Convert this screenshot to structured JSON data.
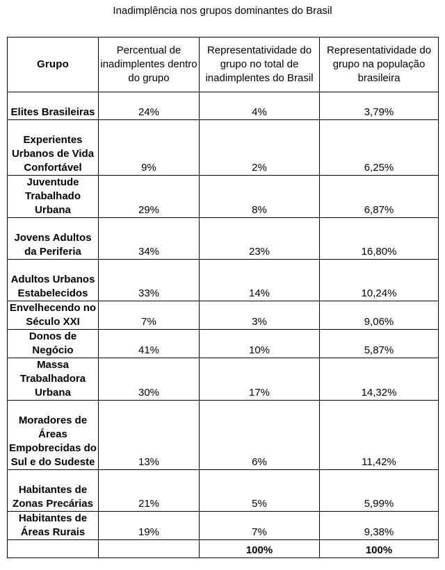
{
  "title": "Inadimplência nos grupos dominantes do Brasil",
  "table": {
    "headers": [
      "Grupo",
      "Percentual de inadimplentes dentro do grupo",
      "Representatividade do grupo no total de inadimplentes do Brasil",
      "Representatividade do grupo na população brasileira"
    ],
    "rows": [
      {
        "group": "Elites Brasileiras",
        "pct_in_group": "24%",
        "share_defaulters": "4%",
        "share_population": "3,79%"
      },
      {
        "group": "Experientes Urbanos de Vida Confortável",
        "pct_in_group": "9%",
        "share_defaulters": "2%",
        "share_population": "6,25%"
      },
      {
        "group": "Juventude Trabalhado Urbana",
        "pct_in_group": "29%",
        "share_defaulters": "8%",
        "share_population": "6,87%"
      },
      {
        "group": "Jovens Adultos da Periferia",
        "pct_in_group": "34%",
        "share_defaulters": "23%",
        "share_population": "16,80%"
      },
      {
        "group": "Adultos Urbanos Estabelecidos",
        "pct_in_group": "33%",
        "share_defaulters": "14%",
        "share_population": "10,24%"
      },
      {
        "group": "Envelhecendo no Século XXI",
        "pct_in_group": "7%",
        "share_defaulters": "3%",
        "share_population": "9,06%"
      },
      {
        "group": "Donos de Negócio",
        "pct_in_group": "41%",
        "share_defaulters": "10%",
        "share_population": "5,87%"
      },
      {
        "group": "Massa Trabalhadora Urbana",
        "pct_in_group": "30%",
        "share_defaulters": "17%",
        "share_population": "14,32%"
      },
      {
        "group": "Moradores de Áreas Empobrecidas do Sul e do Sudeste",
        "pct_in_group": "13%",
        "share_defaulters": "6%",
        "share_population": "11,42%"
      },
      {
        "group": "Habitantes de Zonas Precárias",
        "pct_in_group": "21%",
        "share_defaulters": "5%",
        "share_population": "5,99%"
      },
      {
        "group": "Habitantes de Áreas Rurais",
        "pct_in_group": "19%",
        "share_defaulters": "7%",
        "share_population": "9,38%"
      }
    ],
    "totals": {
      "group": "",
      "pct_in_group": "",
      "share_defaulters": "100%",
      "share_population": "100%"
    }
  }
}
